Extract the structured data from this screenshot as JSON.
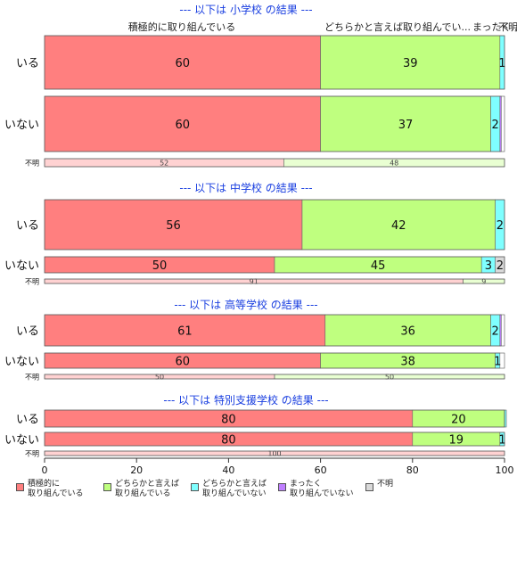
{
  "chart_data": {
    "type": "bar",
    "orientation": "horizontal",
    "stacked": true,
    "xlim": [
      0,
      100
    ],
    "xticks": [
      0,
      20,
      40,
      60,
      80,
      100
    ],
    "categories": [
      "積極的に取り組んでいる",
      "どちらかと言えば取り組んでいる",
      "どちらかと言えば取り組んでいない",
      "まったく取り組んでいない",
      "不明"
    ],
    "colors": [
      "#FF7F7F",
      "#BFFF7F",
      "#7FFFFF",
      "#BF7FFF",
      "#D9D9D9"
    ],
    "top_labels": [
      "積極的に取り組んでいる",
      "どちらかと言えば取り組んでい...",
      "まったく...",
      "不明"
    ],
    "panels": [
      {
        "title": "--- 以下は 小学校 の結果 ---",
        "rows": [
          {
            "label": "いる",
            "values": [
              60,
              39,
              1,
              0,
              0
            ],
            "shown": [
              "60",
              "39",
              "1",
              "",
              ""
            ]
          },
          {
            "label": "いない",
            "values": [
              60,
              37,
              2,
              0.3,
              0
            ],
            "shown": [
              "60",
              "37",
              "2",
              "",
              ""
            ]
          },
          {
            "label": "不明",
            "values": [
              52,
              48,
              0,
              0,
              0
            ],
            "shown": [
              "52",
              "48",
              "",
              "",
              ""
            ]
          }
        ]
      },
      {
        "title": "--- 以下は 中学校 の結果 ---",
        "rows": [
          {
            "label": "いる",
            "values": [
              56,
              42,
              2,
              0,
              0
            ],
            "shown": [
              "56",
              "42",
              "2",
              "",
              ""
            ]
          },
          {
            "label": "いない",
            "values": [
              50,
              45,
              3,
              0,
              2
            ],
            "shown": [
              "50",
              "45",
              "3",
              "",
              "2"
            ]
          },
          {
            "label": "不明",
            "values": [
              91,
              9,
              0,
              0,
              0
            ],
            "shown": [
              "91",
              "9",
              "",
              "",
              ""
            ]
          }
        ]
      },
      {
        "title": "--- 以下は 高等学校 の結果 ---",
        "rows": [
          {
            "label": "いる",
            "values": [
              61,
              36,
              2,
              0.3,
              0
            ],
            "shown": [
              "61",
              "36",
              "2",
              "",
              ""
            ]
          },
          {
            "label": "いない",
            "values": [
              60,
              38,
              1,
              0,
              0
            ],
            "shown": [
              "60",
              "38",
              "1",
              "",
              ""
            ]
          },
          {
            "label": "不明",
            "values": [
              50,
              50,
              0,
              0,
              0
            ],
            "shown": [
              "50",
              "50",
              "",
              "",
              ""
            ]
          }
        ]
      },
      {
        "title": "--- 以下は 特別支援学校 の結果 ---",
        "rows": [
          {
            "label": "いる",
            "values": [
              80,
              20,
              0.4,
              0,
              0
            ],
            "shown": [
              "80",
              "20",
              "",
              "",
              ""
            ]
          },
          {
            "label": "いない",
            "values": [
              80,
              19,
              1,
              0,
              0
            ],
            "shown": [
              "80",
              "19",
              "1",
              "",
              ""
            ]
          },
          {
            "label": "不明",
            "values": [
              100,
              0,
              0,
              0,
              0
            ],
            "shown": [
              "100",
              "",
              "",
              "",
              ""
            ]
          }
        ]
      }
    ],
    "legend": [
      {
        "label": "積極的に\n取り組んでいる",
        "color": "#FF7F7F"
      },
      {
        "label": "どちらかと言えば\n取り組んでいる",
        "color": "#BFFF7F"
      },
      {
        "label": "どちらかと言えば\n取り組んでいない",
        "color": "#7FFFFF"
      },
      {
        "label": "まったく\n取り組んでいない",
        "color": "#BF7FFF"
      },
      {
        "label": "不明",
        "color": "#D9D9D9"
      }
    ]
  }
}
